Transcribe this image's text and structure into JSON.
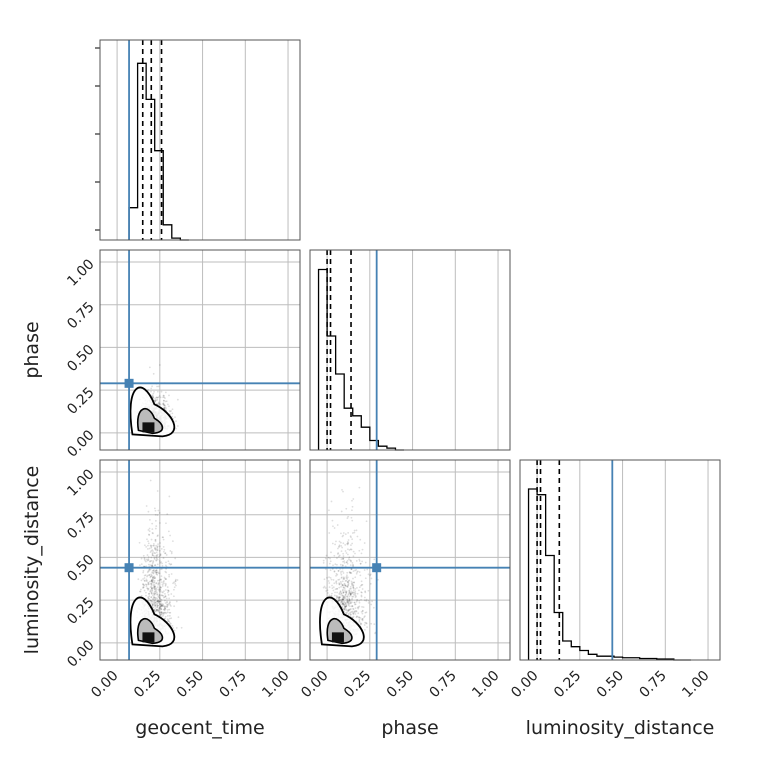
{
  "chart_data": {
    "type": "corner",
    "parameters": [
      "geocent_time",
      "phase",
      "luminosity_distance"
    ],
    "axis_labels": {
      "x": [
        "geocent_time",
        "phase",
        "luminosity_distance"
      ],
      "y": [
        "",
        "phase",
        "luminosity_distance"
      ]
    },
    "range": [
      -0.1,
      1.07
    ],
    "ticks": [
      0.0,
      0.25,
      0.5,
      0.75,
      1.0
    ],
    "tick_labels": [
      "0.00",
      "0.25",
      "0.50",
      "0.75",
      "1.00"
    ],
    "grid": true,
    "colors": {
      "truth": "#4682b4",
      "hist": "#000000",
      "quantile": "#000000",
      "scatter": "#000000"
    },
    "truths": {
      "geocent_time": 0.07,
      "phase": 0.29,
      "luminosity_distance": 0.44
    },
    "histograms": {
      "geocent_time": {
        "bin_edges": [
          0.07,
          0.12,
          0.17,
          0.22,
          0.27,
          0.32,
          0.37,
          0.42
        ],
        "counts": [
          0.17,
          0.93,
          0.74,
          0.47,
          0.08,
          0.01,
          0.0
        ],
        "quantiles": [
          0.15,
          0.2,
          0.26
        ]
      },
      "phase": {
        "bin_edges": [
          -0.05,
          0.0,
          0.05,
          0.1,
          0.15,
          0.2,
          0.25,
          0.3,
          0.35,
          0.4,
          0.45
        ],
        "counts": [
          0.95,
          0.6,
          0.4,
          0.22,
          0.18,
          0.12,
          0.05,
          0.02,
          0.01,
          0.0
        ],
        "quantiles": [
          0.0,
          0.02,
          0.14
        ]
      },
      "luminosity_distance": {
        "bin_edges": [
          -0.05,
          0.0,
          0.05,
          0.1,
          0.15,
          0.2,
          0.25,
          0.3,
          0.35,
          0.4,
          0.45,
          0.5,
          0.6,
          0.7,
          0.8,
          0.9
        ],
        "counts": [
          0.9,
          0.87,
          0.55,
          0.25,
          0.1,
          0.07,
          0.05,
          0.03,
          0.02,
          0.02,
          0.015,
          0.012,
          0.008,
          0.005,
          0.0
        ],
        "quantiles": [
          0.0,
          0.02,
          0.13
        ]
      }
    },
    "joint_panels": [
      {
        "x": "geocent_time",
        "y": "phase",
        "scatter_center": [
          0.2,
          0.1
        ],
        "spread": [
          0.05,
          0.09
        ]
      },
      {
        "x": "geocent_time",
        "y": "luminosity_distance",
        "scatter_center": [
          0.2,
          0.25
        ],
        "spread": [
          0.06,
          0.28
        ]
      },
      {
        "x": "phase",
        "y": "luminosity_distance",
        "scatter_center": [
          0.08,
          0.2
        ],
        "spread": [
          0.07,
          0.26
        ]
      }
    ]
  }
}
